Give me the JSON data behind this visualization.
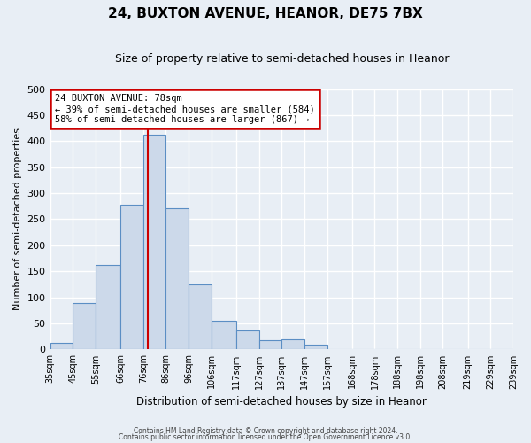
{
  "title": "24, BUXTON AVENUE, HEANOR, DE75 7BX",
  "subtitle": "Size of property relative to semi-detached houses in Heanor",
  "xlabel": "Distribution of semi-detached houses by size in Heanor",
  "ylabel": "Number of semi-detached properties",
  "bin_labels": [
    "35sqm",
    "45sqm",
    "55sqm",
    "66sqm",
    "76sqm",
    "86sqm",
    "96sqm",
    "106sqm",
    "117sqm",
    "127sqm",
    "137sqm",
    "147sqm",
    "157sqm",
    "168sqm",
    "178sqm",
    "188sqm",
    "198sqm",
    "208sqm",
    "219sqm",
    "229sqm",
    "239sqm"
  ],
  "bin_edges": [
    35,
    45,
    55,
    66,
    76,
    86,
    96,
    106,
    117,
    127,
    137,
    147,
    157,
    168,
    178,
    188,
    198,
    208,
    219,
    229,
    239
  ],
  "bin_counts": [
    12,
    90,
    163,
    278,
    413,
    272,
    125,
    55,
    37,
    18,
    19,
    10,
    1,
    0,
    0,
    0,
    0,
    0,
    0,
    0
  ],
  "property_value": 78,
  "bar_color": "#ccd9ea",
  "bar_edge_color": "#5b8ec4",
  "vline_color": "#cc0000",
  "annotation_box_color": "#cc0000",
  "ylim": [
    0,
    500
  ],
  "yticks": [
    0,
    50,
    100,
    150,
    200,
    250,
    300,
    350,
    400,
    450,
    500
  ],
  "annotation_title": "24 BUXTON AVENUE: 78sqm",
  "annotation_line1": "← 39% of semi-detached houses are smaller (584)",
  "annotation_line2": "58% of semi-detached houses are larger (867) →",
  "footer_line1": "Contains HM Land Registry data © Crown copyright and database right 2024.",
  "footer_line2": "Contains public sector information licensed under the Open Government Licence v3.0.",
  "background_color": "#e8eef5",
  "grid_color": "#ffffff",
  "title_fontsize": 11,
  "subtitle_fontsize": 9
}
